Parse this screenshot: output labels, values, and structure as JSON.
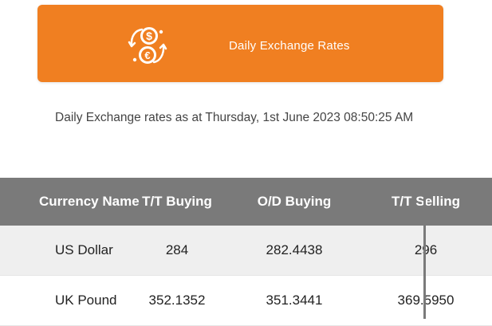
{
  "header": {
    "title": "Daily Exchange Rates",
    "icon": "currency-exchange-icon",
    "accent_color": "#f07f21"
  },
  "subtitle": "Daily Exchange rates as at Thursday, 1st June 2023 08:50:25 AM",
  "table": {
    "headers": {
      "name": "Currency Name",
      "tt_buying": "T/T Buying",
      "od_buying": "O/D Buying",
      "tt_selling": "T/T Selling"
    },
    "rows": [
      {
        "name": "US Dollar",
        "tt_buying": "284",
        "od_buying": "282.4438",
        "tt_selling": "296"
      },
      {
        "name": "UK Pound",
        "tt_buying": "352.1352",
        "od_buying": "351.3441",
        "tt_selling": "369.5950"
      }
    ],
    "header_color": "#7a7a7a",
    "alt_row_color": "#efefef"
  }
}
